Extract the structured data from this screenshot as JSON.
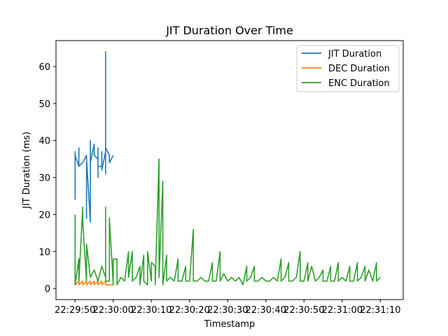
{
  "chart_data": {
    "type": "line",
    "title": "JIT Duration Over Time",
    "xlabel": "Timestamp",
    "ylabel": "JIT Duration (ms)",
    "x_range_seconds_after_22_29_50": [
      -5,
      86
    ],
    "ylim": [
      -3,
      67
    ],
    "x_ticks": [
      "22:29:50",
      "22:30:00",
      "22:30:10",
      "22:30:20",
      "22:30:30",
      "22:30:40",
      "22:30:50",
      "22:31:00",
      "22:31:10"
    ],
    "y_ticks": [
      0,
      10,
      20,
      30,
      40,
      50,
      60
    ],
    "legend_position": "top-right",
    "grid": false,
    "series": [
      {
        "name": "JIT Duration",
        "color": "#1f77b4",
        "points": [
          [
            "22:29:50",
            24
          ],
          [
            "22:29:50",
            37
          ],
          [
            "22:29:50",
            25
          ],
          [
            "22:29:50",
            36
          ],
          [
            "22:29:51",
            33
          ],
          [
            "22:29:51",
            38
          ],
          [
            "22:29:51",
            33
          ],
          [
            "22:29:52",
            34
          ],
          [
            "22:29:53",
            36
          ],
          [
            "22:29:53",
            19
          ],
          [
            "22:29:53",
            35
          ],
          [
            "22:29:54",
            18
          ],
          [
            "22:29:54",
            40
          ],
          [
            "22:29:54",
            34
          ],
          [
            "22:29:55",
            39
          ],
          [
            "22:29:55",
            36
          ],
          [
            "22:29:56",
            35
          ],
          [
            "22:29:56",
            30
          ],
          [
            "22:29:56",
            38
          ],
          [
            "22:29:56",
            33
          ],
          [
            "22:29:57",
            33
          ],
          [
            "22:29:57",
            37
          ],
          [
            "22:29:57",
            32
          ],
          [
            "22:29:58",
            37
          ],
          [
            "22:29:58",
            64
          ],
          [
            "22:29:58",
            32
          ],
          [
            "22:29:58",
            31
          ],
          [
            "22:29:58",
            38
          ],
          [
            "22:29:59",
            36
          ],
          [
            "22:29:59",
            34
          ],
          [
            "22:30:00",
            36
          ]
        ]
      },
      {
        "name": "DEC Duration",
        "color": "#ff7f0e",
        "points": [
          [
            "22:29:50",
            1
          ],
          [
            "22:29:51",
            2
          ],
          [
            "22:29:51",
            1
          ],
          [
            "22:29:52",
            2
          ],
          [
            "22:29:52",
            1
          ],
          [
            "22:29:53",
            2
          ],
          [
            "22:29:53",
            1
          ],
          [
            "22:29:54",
            2
          ],
          [
            "22:29:54",
            1
          ],
          [
            "22:29:55",
            2
          ],
          [
            "22:29:55",
            1
          ],
          [
            "22:29:56",
            2
          ],
          [
            "22:29:56",
            1
          ],
          [
            "22:29:57",
            2
          ],
          [
            "22:29:57",
            1
          ],
          [
            "22:29:58",
            2
          ],
          [
            "22:29:58",
            1
          ],
          [
            "22:29:59",
            1
          ],
          [
            "22:30:00",
            1
          ]
        ]
      },
      {
        "name": "ENC Duration",
        "color": "#2ca02c",
        "points": [
          [
            "22:29:50",
            20
          ],
          [
            "22:29:50",
            1
          ],
          [
            "22:29:51",
            8
          ],
          [
            "22:29:51",
            2
          ],
          [
            "22:29:52",
            22
          ],
          [
            "22:29:52",
            18
          ],
          [
            "22:29:53",
            2
          ],
          [
            "22:29:53",
            12
          ],
          [
            "22:29:54",
            3
          ],
          [
            "22:29:55",
            5
          ],
          [
            "22:29:56",
            2
          ],
          [
            "22:29:57",
            6
          ],
          [
            "22:29:58",
            3
          ],
          [
            "22:29:58",
            22
          ],
          [
            "22:29:58",
            2
          ],
          [
            "22:29:59",
            2
          ],
          [
            "22:29:59",
            19
          ],
          [
            "22:30:00",
            1
          ],
          [
            "22:30:00",
            8
          ],
          [
            "22:30:01",
            8
          ],
          [
            "22:30:01",
            1
          ],
          [
            "22:30:02",
            3
          ],
          [
            "22:30:03",
            2
          ],
          [
            "22:30:04",
            10
          ],
          [
            "22:30:04",
            3
          ],
          [
            "22:30:05",
            10
          ],
          [
            "22:30:05",
            2
          ],
          [
            "22:30:06",
            3
          ],
          [
            "22:30:07",
            6
          ],
          [
            "22:30:07",
            1
          ],
          [
            "22:30:08",
            9
          ],
          [
            "22:30:08",
            2
          ],
          [
            "22:30:09",
            1
          ],
          [
            "22:30:09",
            10
          ],
          [
            "22:30:10",
            2
          ],
          [
            "22:30:10",
            7
          ],
          [
            "22:30:11",
            6
          ],
          [
            "22:30:11",
            1
          ],
          [
            "22:30:12",
            35
          ],
          [
            "22:30:12",
            3
          ],
          [
            "22:30:13",
            29
          ],
          [
            "22:30:13",
            1
          ],
          [
            "22:30:14",
            9
          ],
          [
            "22:30:14",
            2
          ],
          [
            "22:30:15",
            3
          ],
          [
            "22:30:16",
            2
          ],
          [
            "22:30:17",
            8
          ],
          [
            "22:30:17",
            2
          ],
          [
            "22:30:18",
            2
          ],
          [
            "22:30:19",
            6
          ],
          [
            "22:30:19",
            2
          ],
          [
            "22:30:20",
            2
          ],
          [
            "22:30:21",
            16
          ],
          [
            "22:30:21",
            2
          ],
          [
            "22:30:22",
            2
          ],
          [
            "22:30:23",
            3
          ],
          [
            "22:30:24",
            2
          ],
          [
            "22:30:25",
            2
          ],
          [
            "22:30:26",
            7
          ],
          [
            "22:30:26",
            2
          ],
          [
            "22:30:27",
            2
          ],
          [
            "22:30:28",
            10
          ],
          [
            "22:30:28",
            2
          ],
          [
            "22:30:29",
            4
          ],
          [
            "22:30:30",
            2
          ],
          [
            "22:30:31",
            3
          ],
          [
            "22:30:32",
            2
          ],
          [
            "22:30:33",
            3
          ],
          [
            "22:30:34",
            1
          ],
          [
            "22:30:35",
            6
          ],
          [
            "22:30:35",
            2
          ],
          [
            "22:30:36",
            3
          ],
          [
            "22:30:37",
            6
          ],
          [
            "22:30:37",
            2
          ],
          [
            "22:30:38",
            2
          ],
          [
            "22:30:39",
            3
          ],
          [
            "22:30:40",
            2
          ],
          [
            "22:30:41",
            2
          ],
          [
            "22:30:42",
            3
          ],
          [
            "22:30:43",
            2
          ],
          [
            "22:30:44",
            8
          ],
          [
            "22:30:44",
            2
          ],
          [
            "22:30:45",
            3
          ],
          [
            "22:30:46",
            7
          ],
          [
            "22:30:46",
            2
          ],
          [
            "22:30:47",
            2
          ],
          [
            "22:30:48",
            3
          ],
          [
            "22:30:49",
            10
          ],
          [
            "22:30:49",
            2
          ],
          [
            "22:30:50",
            2
          ],
          [
            "22:30:51",
            7
          ],
          [
            "22:30:51",
            2
          ],
          [
            "22:30:52",
            6
          ],
          [
            "22:30:53",
            2
          ],
          [
            "22:30:54",
            3
          ],
          [
            "22:30:55",
            5
          ],
          [
            "22:30:55",
            2
          ],
          [
            "22:30:56",
            2
          ],
          [
            "22:30:57",
            6
          ],
          [
            "22:30:57",
            2
          ],
          [
            "22:30:58",
            2
          ],
          [
            "22:30:59",
            7
          ],
          [
            "22:30:59",
            2
          ],
          [
            "22:31:00",
            3
          ],
          [
            "22:31:01",
            2
          ],
          [
            "22:31:02",
            6
          ],
          [
            "22:31:02",
            2
          ],
          [
            "22:31:03",
            2
          ],
          [
            "22:31:04",
            7
          ],
          [
            "22:31:04",
            2
          ],
          [
            "22:31:05",
            3
          ],
          [
            "22:31:06",
            6
          ],
          [
            "22:31:06",
            2
          ],
          [
            "22:31:07",
            5
          ],
          [
            "22:31:08",
            2
          ],
          [
            "22:31:09",
            7
          ],
          [
            "22:31:09",
            2
          ],
          [
            "22:31:10",
            3
          ]
        ]
      }
    ]
  }
}
